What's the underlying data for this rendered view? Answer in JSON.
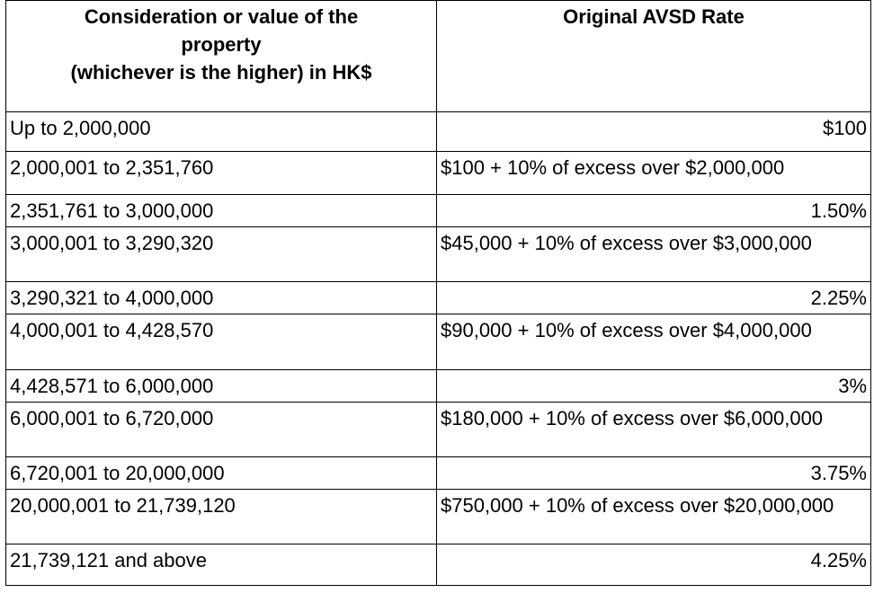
{
  "table": {
    "headers": [
      [
        "Consideration or value of the",
        "property",
        "(whichever is the higher) in HK$"
      ],
      "Original AVSD Rate"
    ],
    "rows": [
      [
        "Up to 2,000,000",
        "$100"
      ],
      [
        "2,000,001 to 2,351,760",
        "$100 + 10% of excess over $2,000,000"
      ],
      [
        "2,351,761 to 3,000,000",
        "1.50%"
      ],
      [
        "3,000,001 to 3,290,320",
        "$45,000 + 10% of excess over $3,000,000"
      ],
      [
        "3,290,321 to 4,000,000",
        "2.25%"
      ],
      [
        "4,000,001 to 4,428,570",
        "$90,000 + 10% of excess over $4,000,000"
      ],
      [
        "4,428,571 to 6,000,000",
        "3%"
      ],
      [
        "6,000,001 to 6,720,000",
        "$180,000 + 10% of excess over $6,000,000"
      ],
      [
        "6,720,001 to 20,000,000",
        "3.75%"
      ],
      [
        "20,000,001 to 21,739,120",
        "$750,000 + 10% of excess over $20,000,000"
      ],
      [
        "21,739,121 and above",
        "4.25%"
      ]
    ]
  }
}
